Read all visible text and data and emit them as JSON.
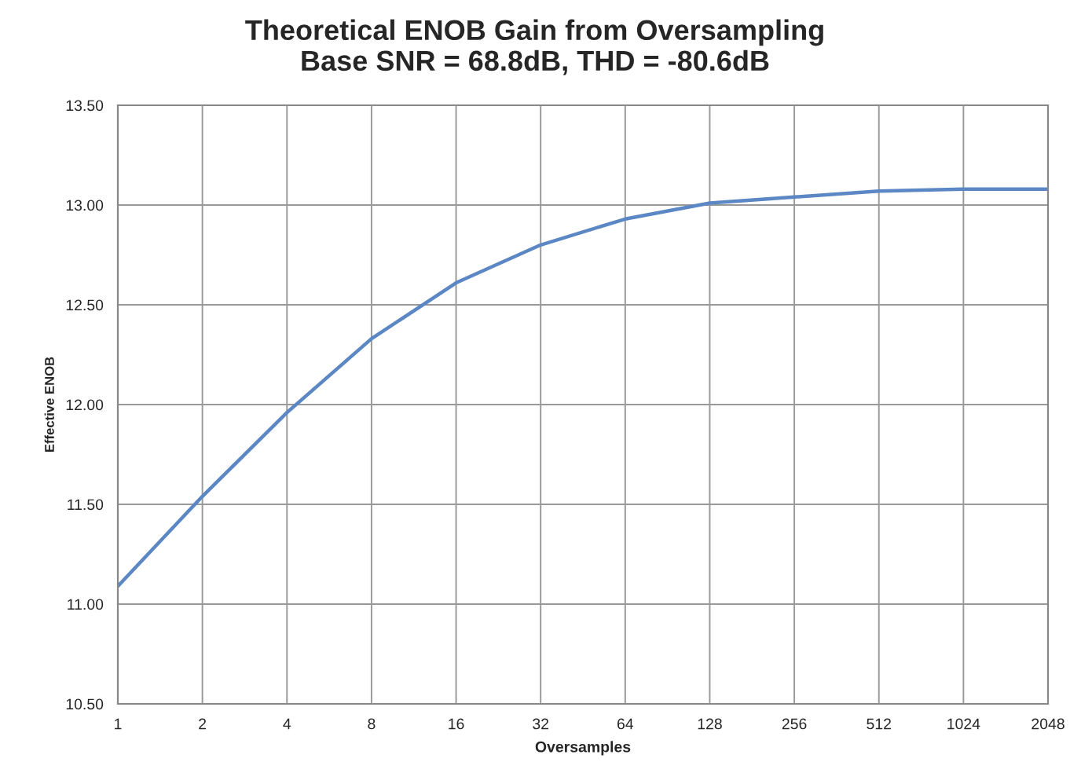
{
  "chart_data": {
    "type": "line",
    "title": "Theoretical ENOB Gain from Oversampling\nBase SNR = 68.8dB, THD = -80.6dB",
    "xlabel": "Oversamples",
    "ylabel": "Effective ENOB",
    "categories": [
      "1",
      "2",
      "4",
      "8",
      "16",
      "32",
      "64",
      "128",
      "256",
      "512",
      "1024",
      "2048"
    ],
    "series": [
      {
        "color": "#5b87c5",
        "values": [
          11.09,
          11.54,
          11.96,
          12.33,
          12.61,
          12.8,
          12.93,
          13.01,
          13.04,
          13.07,
          13.08,
          13.08
        ]
      }
    ],
    "ylim": [
      10.5,
      13.5
    ],
    "yticks": [
      {
        "value": 10.5,
        "label": "10.50"
      },
      {
        "value": 11.0,
        "label": "11.00"
      },
      {
        "value": 11.5,
        "label": "11.50"
      },
      {
        "value": 12.0,
        "label": "12.00"
      },
      {
        "value": 12.5,
        "label": "12.50"
      },
      {
        "value": 13.0,
        "label": "13.00"
      },
      {
        "value": 13.5,
        "label": "13.50"
      }
    ],
    "grid": true,
    "marker": "none",
    "line_style": "solid"
  }
}
